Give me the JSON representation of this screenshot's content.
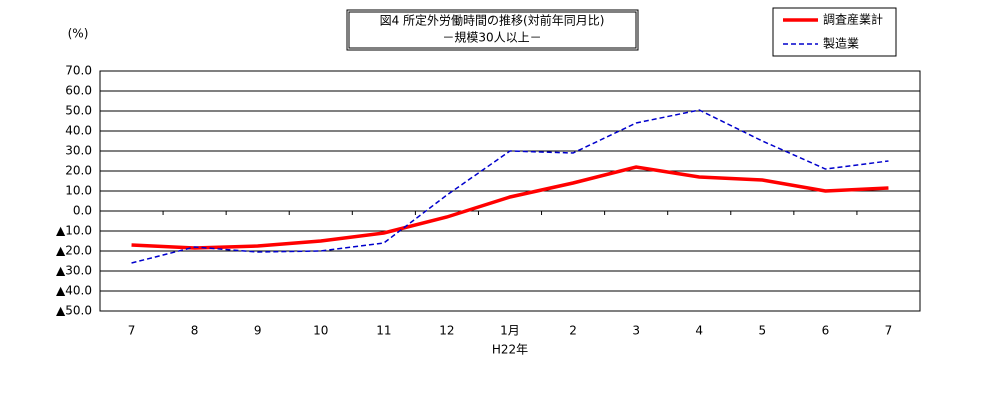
{
  "chart_data": {
    "type": "line",
    "title": "図4 所定外労働時間の推移(対前年同月比)",
    "subtitle": "－規模30人以上－",
    "ylabel": "(%)",
    "xlabel": "H22年",
    "categories": [
      "7",
      "8",
      "9",
      "10",
      "11",
      "12",
      "1月",
      "2",
      "3",
      "4",
      "5",
      "6",
      "7"
    ],
    "series": [
      {
        "name": "調査産業計",
        "color": "#ff0000",
        "values": [
          -17,
          -18.5,
          -17.5,
          -15,
          -11,
          -3,
          7,
          14,
          22,
          17,
          15.5,
          10,
          11.5
        ]
      },
      {
        "name": "製造業",
        "color": "#0000cc",
        "values": [
          -26,
          -18,
          -20.5,
          -20,
          -16,
          8,
          30,
          29,
          44,
          50.5,
          35,
          21,
          25
        ]
      }
    ],
    "ylim": [
      -50,
      70
    ],
    "yticks": [
      {
        "value": 70,
        "label": "70.0"
      },
      {
        "value": 60,
        "label": "60.0"
      },
      {
        "value": 50,
        "label": "50.0"
      },
      {
        "value": 40,
        "label": "40.0"
      },
      {
        "value": 30,
        "label": "30.0"
      },
      {
        "value": 20,
        "label": "20.0"
      },
      {
        "value": 10,
        "label": "10.0"
      },
      {
        "value": 0,
        "label": "0.0"
      },
      {
        "value": -10,
        "label": "▲10.0"
      },
      {
        "value": -20,
        "label": "▲20.0"
      },
      {
        "value": -30,
        "label": "▲30.0"
      },
      {
        "value": -40,
        "label": "▲40.0"
      },
      {
        "value": -50,
        "label": "▲50.0"
      }
    ],
    "grid": true
  }
}
